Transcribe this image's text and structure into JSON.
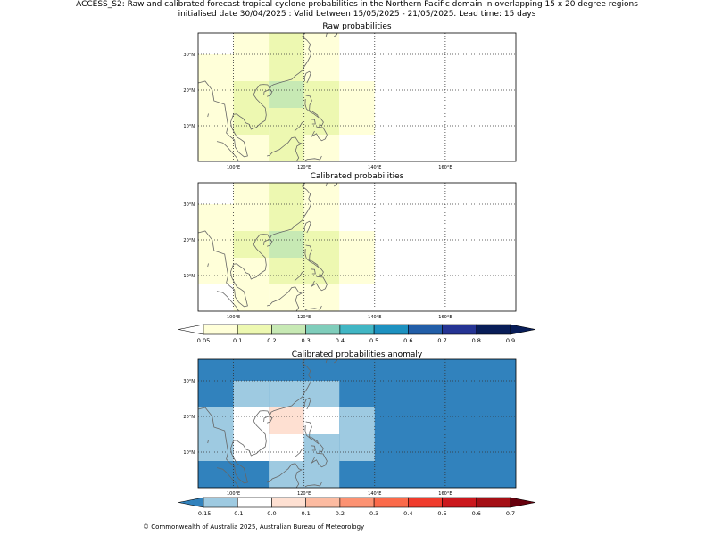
{
  "title_line1": "ACCESS_S2: Raw and calibrated forecast tropical cyclone probabilities in the Northern Pacific domain in overlapping 15 x 20 degree regions",
  "title_line2": "initialised date 30/04/2025 :  Valid between 15/05/2025 - 21/05/2025. Lead time: 15 days",
  "copyright": "© Commonwealth of Australia 2025, Australian Bureau of Meteorology",
  "colors": {
    "prob": [
      "#ffffd9",
      "#edf8b1",
      "#c7e9b4",
      "#7fcdbb",
      "#41b6c4",
      "#1d91c0",
      "#225ea8",
      "#253494",
      "#081d58"
    ],
    "anom": [
      "#9ecae1",
      "#ffffff",
      "#fee0d2",
      "#fcbba1",
      "#fc9272",
      "#fb6a4a",
      "#ef3b2c",
      "#cb181d",
      "#a50f15"
    ],
    "anom_under": "#3182bd",
    "anom_over": "#67000d"
  },
  "panels": [
    {
      "title": "Raw probabilities",
      "lat_labels": [
        "30°N",
        "20°N",
        "10°N"
      ],
      "lon_labels": [
        "100°E",
        "120°E",
        "140°E",
        "160°E"
      ],
      "cells": [
        {
          "lon": [
            100,
            110
          ],
          "lat": [
            30,
            36
          ],
          "level": 0
        },
        {
          "lon": [
            110,
            120
          ],
          "lat": [
            30,
            36
          ],
          "level": 1
        },
        {
          "lon": [
            120,
            130
          ],
          "lat": [
            30,
            36
          ],
          "level": 0
        },
        {
          "lon": [
            90,
            100
          ],
          "lat": [
            22.5,
            30
          ],
          "level": 0
        },
        {
          "lon": [
            100,
            110
          ],
          "lat": [
            22.5,
            30
          ],
          "level": 0
        },
        {
          "lon": [
            110,
            120
          ],
          "lat": [
            22.5,
            30
          ],
          "level": 1
        },
        {
          "lon": [
            120,
            130
          ],
          "lat": [
            22.5,
            30
          ],
          "level": 0
        },
        {
          "lon": [
            90,
            100
          ],
          "lat": [
            15,
            22.5
          ],
          "level": 0
        },
        {
          "lon": [
            100,
            110
          ],
          "lat": [
            15,
            22.5
          ],
          "level": 1
        },
        {
          "lon": [
            110,
            120
          ],
          "lat": [
            15,
            22.5
          ],
          "level": 2
        },
        {
          "lon": [
            120,
            130
          ],
          "lat": [
            15,
            22.5
          ],
          "level": 1
        },
        {
          "lon": [
            130,
            140
          ],
          "lat": [
            15,
            22.5
          ],
          "level": 0
        },
        {
          "lon": [
            90,
            100
          ],
          "lat": [
            7.5,
            15
          ],
          "level": 0
        },
        {
          "lon": [
            100,
            110
          ],
          "lat": [
            7.5,
            15
          ],
          "level": 1
        },
        {
          "lon": [
            110,
            120
          ],
          "lat": [
            7.5,
            15
          ],
          "level": 1
        },
        {
          "lon": [
            120,
            130
          ],
          "lat": [
            7.5,
            15
          ],
          "level": 1
        },
        {
          "lon": [
            130,
            140
          ],
          "lat": [
            7.5,
            15
          ],
          "level": 0
        },
        {
          "lon": [
            90,
            100
          ],
          "lat": [
            0,
            7.5
          ],
          "level": 0
        },
        {
          "lon": [
            100,
            110
          ],
          "lat": [
            0,
            7.5
          ],
          "level": 0
        },
        {
          "lon": [
            110,
            120
          ],
          "lat": [
            0,
            7.5
          ],
          "level": 1
        },
        {
          "lon": [
            120,
            130
          ],
          "lat": [
            0,
            7.5
          ],
          "level": 0
        }
      ]
    },
    {
      "title": "Calibrated probabilities",
      "lat_labels": [
        "30°N",
        "20°N",
        "10°N"
      ],
      "lon_labels": [
        "100°E",
        "120°E",
        "140°E",
        "160°E"
      ],
      "cells": [
        {
          "lon": [
            100,
            110
          ],
          "lat": [
            30,
            36
          ],
          "level": 0
        },
        {
          "lon": [
            110,
            120
          ],
          "lat": [
            30,
            36
          ],
          "level": 1
        },
        {
          "lon": [
            120,
            130
          ],
          "lat": [
            30,
            36
          ],
          "level": 0
        },
        {
          "lon": [
            90,
            100
          ],
          "lat": [
            22.5,
            30
          ],
          "level": 0
        },
        {
          "lon": [
            100,
            110
          ],
          "lat": [
            22.5,
            30
          ],
          "level": 0
        },
        {
          "lon": [
            110,
            120
          ],
          "lat": [
            22.5,
            30
          ],
          "level": 1
        },
        {
          "lon": [
            120,
            130
          ],
          "lat": [
            22.5,
            30
          ],
          "level": 0
        },
        {
          "lon": [
            90,
            100
          ],
          "lat": [
            15,
            22.5
          ],
          "level": 0
        },
        {
          "lon": [
            100,
            110
          ],
          "lat": [
            15,
            22.5
          ],
          "level": 1
        },
        {
          "lon": [
            110,
            120
          ],
          "lat": [
            15,
            22.5
          ],
          "level": 2
        },
        {
          "lon": [
            120,
            130
          ],
          "lat": [
            15,
            22.5
          ],
          "level": 1
        },
        {
          "lon": [
            130,
            140
          ],
          "lat": [
            15,
            22.5
          ],
          "level": 0
        },
        {
          "lon": [
            90,
            100
          ],
          "lat": [
            7.5,
            15
          ],
          "level": 0
        },
        {
          "lon": [
            100,
            110
          ],
          "lat": [
            7.5,
            15
          ],
          "level": 0
        },
        {
          "lon": [
            110,
            120
          ],
          "lat": [
            7.5,
            15
          ],
          "level": 1
        },
        {
          "lon": [
            120,
            130
          ],
          "lat": [
            7.5,
            15
          ],
          "level": 1
        },
        {
          "lon": [
            130,
            140
          ],
          "lat": [
            7.5,
            15
          ],
          "level": 0
        },
        {
          "lon": [
            100,
            110
          ],
          "lat": [
            0,
            7.5
          ],
          "level": 0
        },
        {
          "lon": [
            110,
            120
          ],
          "lat": [
            0,
            7.5
          ],
          "level": 0
        },
        {
          "lon": [
            120,
            130
          ],
          "lat": [
            0,
            7.5
          ],
          "level": 0
        }
      ]
    },
    {
      "title": "Calibrated probabilities anomaly",
      "lat_labels": [
        "30°N",
        "20°N",
        "10°N"
      ],
      "lon_labels": [
        "100°E",
        "120°E",
        "140°E",
        "160°E"
      ],
      "background": "under",
      "cells": [
        {
          "lon": [
            100,
            110
          ],
          "lat": [
            22.5,
            30
          ],
          "level": 0
        },
        {
          "lon": [
            110,
            120
          ],
          "lat": [
            22.5,
            30
          ],
          "level": 0
        },
        {
          "lon": [
            120,
            130
          ],
          "lat": [
            22.5,
            30
          ],
          "level": 0
        },
        {
          "lon": [
            90,
            100
          ],
          "lat": [
            15,
            22.5
          ],
          "level": 0
        },
        {
          "lon": [
            100,
            110
          ],
          "lat": [
            15,
            22.5
          ],
          "level": 1
        },
        {
          "lon": [
            110,
            120
          ],
          "lat": [
            15,
            22.5
          ],
          "level": 2
        },
        {
          "lon": [
            120,
            130
          ],
          "lat": [
            15,
            22.5
          ],
          "level": 1
        },
        {
          "lon": [
            130,
            140
          ],
          "lat": [
            15,
            22.5
          ],
          "level": 0
        },
        {
          "lon": [
            90,
            100
          ],
          "lat": [
            7.5,
            15
          ],
          "level": 0
        },
        {
          "lon": [
            100,
            110
          ],
          "lat": [
            7.5,
            15
          ],
          "level": 1
        },
        {
          "lon": [
            110,
            120
          ],
          "lat": [
            7.5,
            15
          ],
          "level": 1
        },
        {
          "lon": [
            120,
            130
          ],
          "lat": [
            7.5,
            15
          ],
          "level": 0
        },
        {
          "lon": [
            130,
            140
          ],
          "lat": [
            7.5,
            15
          ],
          "level": 0
        },
        {
          "lon": [
            110,
            120
          ],
          "lat": [
            0,
            7.5
          ],
          "level": 0
        },
        {
          "lon": [
            120,
            130
          ],
          "lat": [
            0,
            7.5
          ],
          "level": 0
        }
      ]
    }
  ],
  "colorbar_prob": {
    "labels": [
      "0.05",
      "0.1",
      "0.2",
      "0.3",
      "0.4",
      "0.5",
      "0.6",
      "0.7",
      "0.8",
      "0.9"
    ]
  },
  "colorbar_anom": {
    "labels": [
      "-0.15",
      "-0.1",
      "0.0",
      "0.1",
      "0.2",
      "0.3",
      "0.4",
      "0.5",
      "0.6",
      "0.7"
    ]
  }
}
